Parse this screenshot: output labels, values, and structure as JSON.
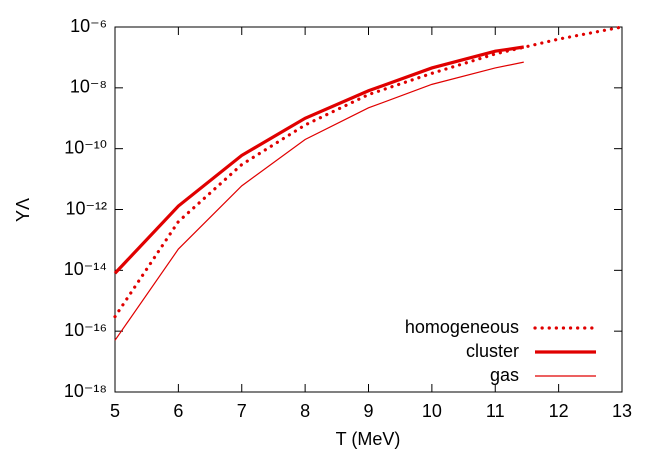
{
  "chart_data": {
    "type": "line",
    "x_label": "T (MeV)",
    "y_label": "YΛ",
    "xlim": [
      5,
      13
    ],
    "xticks": [
      5,
      6,
      7,
      8,
      9,
      10,
      11,
      12,
      13
    ],
    "ylim": [
      1e-18,
      1e-06
    ],
    "yticks": [
      {
        "value": 1e-18,
        "label": "10⁻¹⁸"
      },
      {
        "value": 1e-16,
        "label": "10⁻¹⁶"
      },
      {
        "value": 1e-14,
        "label": "10⁻¹⁴"
      },
      {
        "value": 1e-12,
        "label": "10⁻¹²"
      },
      {
        "value": 1e-10,
        "label": "10⁻¹⁰"
      },
      {
        "value": 1e-08,
        "label": "10⁻⁸"
      },
      {
        "value": 1e-06,
        "label": "10⁻⁶"
      }
    ],
    "log_y": true,
    "legend": "bottom right",
    "series": [
      {
        "name": "homogeneous",
        "color": "#e00000",
        "style": "dotted",
        "x": [
          5,
          6,
          7,
          8,
          9,
          10,
          11,
          12,
          13
        ],
        "values": [
          3e-16,
          4e-13,
          3e-11,
          6e-10,
          6e-09,
          3e-08,
          1.3e-07,
          4e-07,
          1e-06
        ]
      },
      {
        "name": "cluster",
        "color": "#e00000",
        "style": "thick",
        "x": [
          5,
          6,
          7,
          8,
          9,
          10,
          11,
          11.45
        ],
        "values": [
          8e-15,
          1.3e-12,
          6e-11,
          1e-09,
          8e-09,
          4.5e-08,
          1.6e-07,
          2.2e-07
        ]
      },
      {
        "name": "gas",
        "color": "#e00000",
        "style": "thin",
        "x": [
          5,
          6,
          7,
          8,
          9,
          10,
          11,
          11.45
        ],
        "values": [
          5e-17,
          5e-14,
          6e-12,
          2e-10,
          2.2e-09,
          1.3e-08,
          4.5e-08,
          7e-08
        ]
      }
    ]
  }
}
